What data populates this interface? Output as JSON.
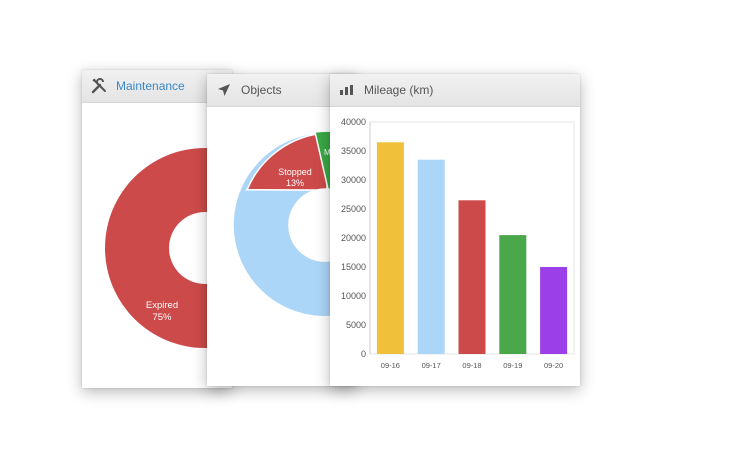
{
  "maintenance": {
    "title": "Maintenance",
    "icon": "tools-icon",
    "donut": {
      "segments": [
        {
          "label": "Expired",
          "percent": 75,
          "color": "#cd4a4a"
        }
      ]
    },
    "label_text": "Expired",
    "label_pct": "75%"
  },
  "objects": {
    "title": "Objects",
    "icon": "navigation-arrow-icon",
    "donut": {
      "segments": [
        {
          "label": "Stopped",
          "percent": 13,
          "color": "#cd4a4a"
        },
        {
          "label": "M",
          "color": "#3aa845"
        },
        {
          "color": "#acd6f7"
        }
      ]
    },
    "stopped_text": "Stopped",
    "stopped_pct": "13%",
    "moving_text": "M"
  },
  "mileage": {
    "title": "Mileage (km)",
    "icon": "bar-chart-icon",
    "chart_data": {
      "type": "bar",
      "categories": [
        "09-16",
        "09-17",
        "09-18",
        "09-19",
        "09-20"
      ],
      "values": [
        36500,
        33500,
        26500,
        20500,
        15000
      ],
      "colors": [
        "#f0c03a",
        "#acd6f7",
        "#cd4a4a",
        "#4aa84a",
        "#9b3fe8"
      ],
      "title": "Mileage (km)",
      "ylim": [
        0,
        40000
      ],
      "yticks": [
        "0",
        "5000",
        "10000",
        "15000",
        "20000",
        "25000",
        "30000",
        "35000",
        "40000"
      ]
    }
  }
}
